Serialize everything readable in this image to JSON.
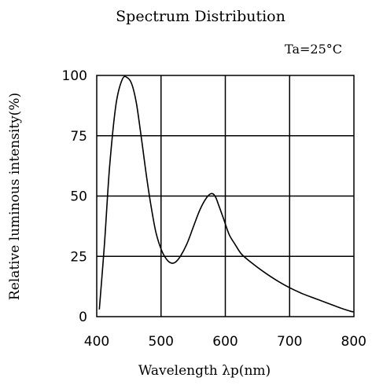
{
  "chart_data": {
    "type": "line",
    "title": "Spectrum Distribution",
    "annotation": "Ta=25°C",
    "xlabel": "Wavelength  λp(nm)",
    "ylabel": "Relative luminous intensity(%)",
    "xlim": [
      400,
      800
    ],
    "ylim": [
      0,
      100
    ],
    "x_ticks": [
      400,
      500,
      600,
      700,
      800
    ],
    "y_ticks": [
      0,
      25,
      50,
      75,
      100
    ],
    "grid": true,
    "series": [
      {
        "x": [
          404,
          412,
          420,
          430,
          440,
          448,
          455,
          462,
          470,
          478,
          485,
          492,
          500,
          508,
          515,
          522,
          530,
          540,
          550,
          560,
          570,
          578,
          584,
          590,
          598,
          606,
          615,
          625,
          640,
          660,
          680,
          700,
          720,
          740,
          760,
          780,
          795,
          800
        ],
        "y": [
          3,
          30,
          62,
          88,
          98.5,
          99,
          96,
          88,
          73,
          57,
          45,
          35,
          28,
          24,
          22.3,
          22.5,
          25,
          30,
          37,
          44,
          49,
          51,
          50,
          46,
          40,
          34,
          30,
          26,
          22.5,
          18.5,
          15,
          12,
          9.5,
          7.5,
          5.5,
          3.5,
          2.2,
          2
        ]
      }
    ]
  }
}
